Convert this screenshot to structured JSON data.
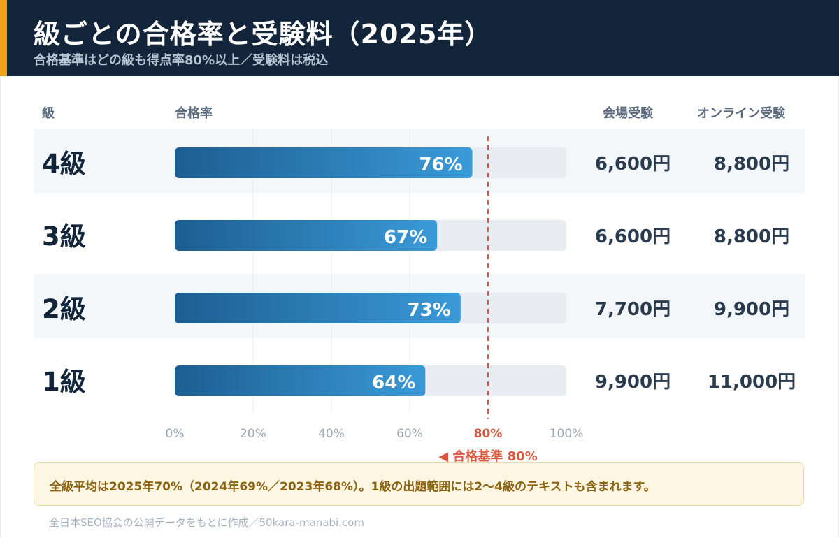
{
  "header": {
    "title": "級ごとの合格率と受験料（2025年）",
    "subtitle": "合格基準はどの級も得点率80%以上／受験料は税込"
  },
  "columns": {
    "grade": "級",
    "pass_rate": "合格率",
    "venue_fee": "会場受験",
    "online_fee": "オンライン受験"
  },
  "colors": {
    "bar_start": "#1d5e91",
    "bar_end": "#3a9ad8",
    "track": "#e9edf1",
    "threshold": "#d9573e",
    "row_band": "#f4f7fa"
  },
  "chart_data": {
    "type": "bar",
    "orientation": "horizontal",
    "categories": [
      "4級",
      "3級",
      "2級",
      "1級"
    ],
    "values": [
      76,
      67,
      73,
      64
    ],
    "value_labels": [
      "76%",
      "67%",
      "73%",
      "64%"
    ],
    "xlim": [
      0,
      100
    ],
    "x_ticks": [
      "0%",
      "20%",
      "40%",
      "60%",
      "80%",
      "100%"
    ],
    "tick_values": [
      0,
      20,
      40,
      60,
      80,
      100
    ],
    "grid": true,
    "threshold": {
      "value": 80,
      "label": "◀ 合格基準 80%"
    },
    "fees": [
      {
        "venue": "6,600円",
        "online": "8,800円"
      },
      {
        "venue": "6,600円",
        "online": "8,800円"
      },
      {
        "venue": "7,700円",
        "online": "9,900円"
      },
      {
        "venue": "9,900円",
        "online": "11,000円"
      }
    ]
  },
  "note": "全級平均は2025年70%（2024年69%／2023年68%）。1級の出題範囲には2〜4級のテキストも含まれます。",
  "source": "全日本SEO協会の公開データをもとに作成／50kara-manabi.com"
}
